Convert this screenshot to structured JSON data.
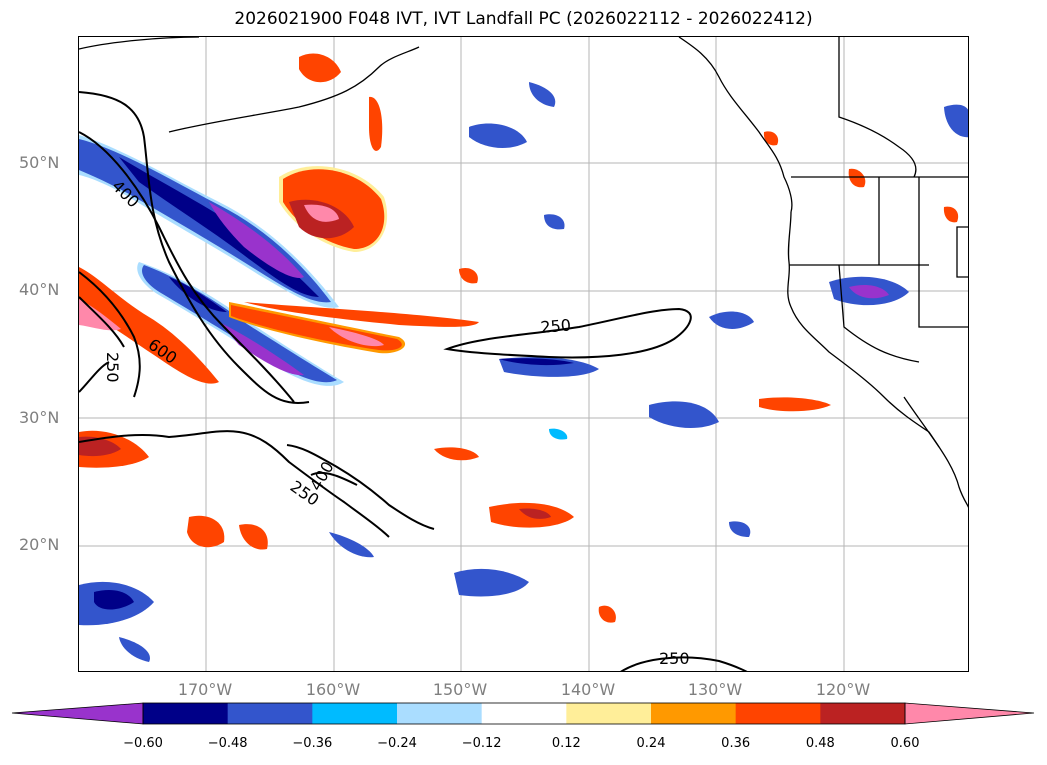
{
  "title": "2026021900 F048 IVT, IVT Landfall PC (2026022112 - 2026022412)",
  "lat_labels": [
    "50°N",
    "40°N",
    "30°N",
    "20°N"
  ],
  "lon_labels": [
    "170°W",
    "160°W",
    "150°W",
    "140°W",
    "130°W",
    "120°W"
  ],
  "contour_labels": [
    "250",
    "250",
    "250",
    "600",
    "250",
    "400",
    "250",
    "400"
  ],
  "colorbar": {
    "ticks": [
      "−0.60",
      "−0.48",
      "−0.36",
      "−0.24",
      "−0.12",
      "0.12",
      "0.24",
      "0.36",
      "0.48",
      "0.60"
    ],
    "colors": [
      "#9933cc",
      "#000088",
      "#3355cc",
      "#00bbff",
      "#aaddff",
      "#ffffff",
      "#ffee99",
      "#ff9900",
      "#ff4400",
      "#bb2222",
      "#ff88aa"
    ]
  }
}
